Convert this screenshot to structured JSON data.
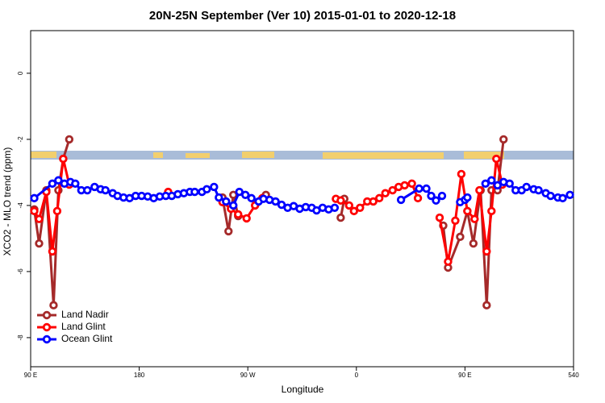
{
  "chart_data": {
    "type": "line",
    "title": "20N-25N September (Ver 10)   2015-01-01 to 2020-12-18",
    "xlabel": "Longitude",
    "ylabel": "XCO2 - MLO trend (ppm)",
    "xlim": [
      90,
      540
    ],
    "ylim": [
      -8.88,
      1.29
    ],
    "xticks": [
      {
        "value": 90,
        "label": "90 E"
      },
      180,
      {
        "value": 270,
        "label": "90 W"
      },
      {
        "value": 360,
        "label": "0"
      },
      {
        "value": 450,
        "label": "90 E"
      },
      540
    ],
    "yticks": [
      0,
      -2,
      -4,
      -6,
      -8
    ],
    "legend": "bottom-left",
    "series": [
      {
        "name": "Land Nadir",
        "color": "#a52a2a",
        "x": [
          93,
          97,
          103,
          109,
          113,
          117,
          122,
          null,
          249,
          254,
          258,
          262,
          null,
          277,
          285,
          null,
          347,
          350,
          null,
          432,
          436,
          446,
          452,
          457,
          463,
          468,
          472,
          477,
          482
        ],
        "values": [
          -4.12,
          -5.15,
          -3.54,
          -7.02,
          -3.54,
          -2.59,
          -2.0,
          null,
          -3.76,
          -4.78,
          -3.68,
          -4.32,
          null,
          -3.93,
          -3.68,
          null,
          -4.37,
          -3.8,
          null,
          -4.61,
          -5.88,
          -4.95,
          -4.17,
          -5.15,
          -3.54,
          -7.02,
          -3.54,
          -3.54,
          -2.0
        ]
      },
      {
        "name": "Land Glint",
        "color": "#ff0000",
        "x": [
          93,
          97,
          103,
          108,
          112,
          117,
          122,
          null,
          204,
          null,
          249,
          256,
          262,
          269,
          276,
          282,
          null,
          343,
          347,
          354,
          358,
          363,
          369,
          374,
          379,
          384,
          390,
          395,
          400,
          406,
          411,
          null,
          429,
          436,
          442,
          447,
          452,
          458,
          462,
          468,
          472,
          476,
          481
        ],
        "values": [
          -4.17,
          -4.41,
          -3.59,
          -5.39,
          -4.17,
          -2.59,
          -3.37,
          null,
          -3.59,
          null,
          -3.9,
          -4.1,
          -4.27,
          -4.39,
          -4.0,
          -3.78,
          null,
          -3.8,
          -3.85,
          -4.0,
          -4.17,
          -4.07,
          -3.88,
          -3.88,
          -3.78,
          -3.63,
          -3.54,
          -3.44,
          -3.39,
          -3.34,
          -3.78,
          null,
          -4.37,
          -5.7,
          -4.46,
          -3.05,
          -4.17,
          -4.41,
          -3.54,
          -5.39,
          -4.17,
          -2.59,
          -3.37
        ]
      },
      {
        "name": "Ocean Glint",
        "color": "#0000ff",
        "x": [
          93,
          108,
          113,
          118,
          123,
          127,
          132,
          137,
          143,
          148,
          152,
          158,
          162,
          167,
          172,
          177,
          182,
          187,
          192,
          197,
          202,
          207,
          212,
          217,
          222,
          226,
          232,
          236,
          242,
          246,
          252,
          258,
          263,
          268,
          273,
          279,
          283,
          288,
          293,
          298,
          303,
          308,
          313,
          318,
          323,
          327,
          332,
          337,
          342,
          null,
          397,
          412,
          418,
          422,
          426,
          431,
          null,
          446,
          450,
          452,
          null,
          467,
          472,
          477,
          482,
          487,
          492,
          497,
          501,
          507,
          511,
          517,
          521,
          527,
          531,
          537
        ],
        "values": [
          -3.78,
          -3.34,
          -3.24,
          -3.34,
          -3.29,
          -3.34,
          -3.54,
          -3.54,
          -3.44,
          -3.51,
          -3.54,
          -3.63,
          -3.71,
          -3.76,
          -3.78,
          -3.71,
          -3.71,
          -3.73,
          -3.78,
          -3.73,
          -3.71,
          -3.71,
          -3.66,
          -3.63,
          -3.59,
          -3.59,
          -3.59,
          -3.51,
          -3.44,
          -3.76,
          -3.88,
          -4.0,
          -3.59,
          -3.68,
          -3.78,
          -3.88,
          -3.8,
          -3.83,
          -3.88,
          -3.98,
          -4.07,
          -4.02,
          -4.1,
          -4.05,
          -4.07,
          -4.15,
          -4.07,
          -4.12,
          -4.07,
          null,
          -3.83,
          -3.49,
          -3.49,
          -3.71,
          -3.85,
          -3.71,
          null,
          -3.9,
          -3.83,
          -3.76,
          null,
          -3.34,
          -3.24,
          -3.39,
          -3.29,
          -3.34,
          -3.54,
          -3.54,
          -3.44,
          -3.51,
          -3.54,
          -3.63,
          -3.71,
          -3.76,
          -3.78,
          -3.68
        ]
      }
    ]
  }
}
